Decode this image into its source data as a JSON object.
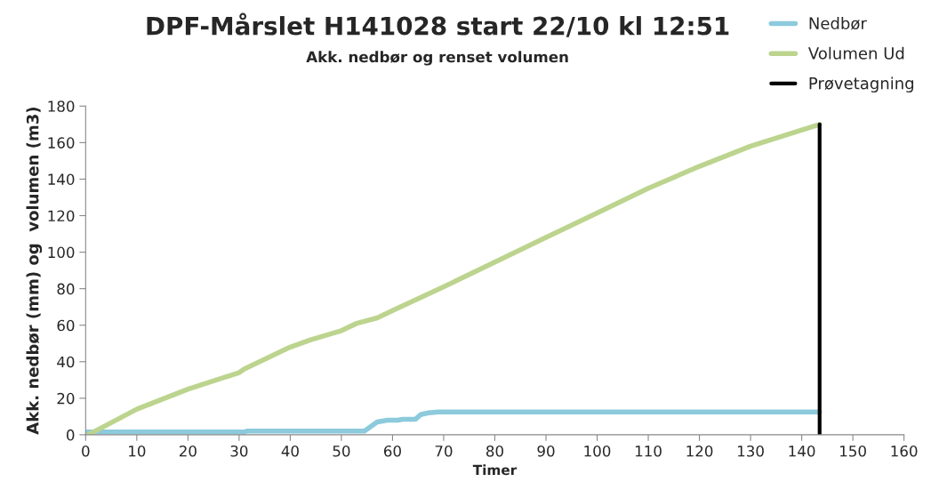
{
  "chart_data": {
    "type": "line",
    "title": "DPF-Mårslet H141028 start 22/10 kl 12:51",
    "subtitle": "Akk. nedbør og renset volumen",
    "xlabel": "Timer",
    "ylabel": "Akk. nedbør (mm) og  volumen (m3)",
    "series": [
      {
        "name": "Nedbør",
        "color": "#8ccadc",
        "x": [
          0,
          31,
          31.5,
          54.5,
          57,
          59,
          61,
          62,
          64.5,
          65.5,
          67,
          69,
          143.5
        ],
        "values": [
          1.5,
          1.5,
          2,
          2,
          7,
          8,
          8,
          8.5,
          8.5,
          11,
          12,
          12.5,
          12.5
        ]
      },
      {
        "name": "Volumen Ud",
        "color": "#bcd48e",
        "x": [
          0.5,
          10,
          20,
          30,
          31,
          40,
          44,
          50,
          53,
          57,
          60,
          70,
          80,
          90,
          100,
          110,
          120,
          130,
          143.5
        ],
        "values": [
          0,
          14,
          25,
          34,
          36,
          48,
          52,
          57,
          61,
          64,
          68,
          81,
          94.5,
          108,
          121.5,
          135,
          147,
          158,
          170
        ]
      },
      {
        "name": "Prøvetagning",
        "color": "#000000",
        "x": [
          143.5,
          143.5
        ],
        "values": [
          0,
          170
        ]
      }
    ],
    "xlim": [
      0,
      160
    ],
    "xticks": [
      0,
      10,
      20,
      30,
      40,
      50,
      60,
      70,
      80,
      90,
      100,
      110,
      120,
      130,
      140,
      150,
      160
    ],
    "ylim": [
      0,
      180
    ],
    "yticks": [
      0,
      20,
      40,
      60,
      80,
      100,
      120,
      140,
      160,
      180
    ],
    "grid": false,
    "legend": "top right"
  }
}
